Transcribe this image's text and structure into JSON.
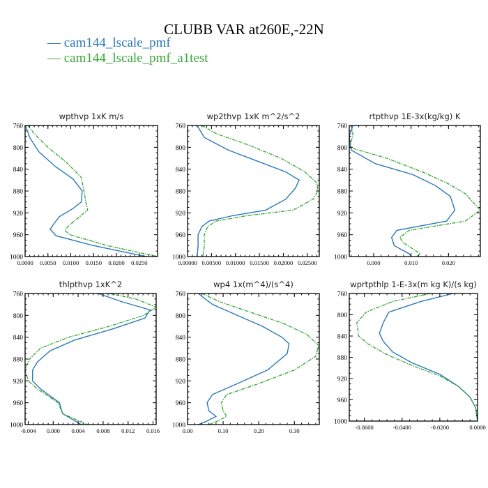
{
  "title": "CLUBB VAR at260E,-22N",
  "legend": [
    {
      "label": "— cam144_lscale_pmf",
      "color": "#2a78b6"
    },
    {
      "label": "— cam144_lscale_pmf_a1test",
      "color": "#3aa83a"
    }
  ],
  "colors": {
    "series1": "#2a78b6",
    "series2": "#3aa83a"
  },
  "chart_data": [
    {
      "type": "line",
      "title": "wpthvp  1xK m/s",
      "xlim": [
        0,
        0.029
      ],
      "ylim": [
        760,
        1000
      ],
      "y_inverted": true,
      "xticks": [
        0,
        0.005,
        0.01,
        0.015,
        0.02,
        0.025
      ],
      "xtick_labels": [
        "0.0000",
        "0.0050",
        "0.0100",
        "0.0150",
        "0.0200",
        "0.0250"
      ],
      "yticks": [
        760,
        800,
        840,
        880,
        920,
        960,
        1000
      ],
      "ytick_labels": [
        "760",
        "800",
        "840",
        "880",
        "920",
        "960",
        "1000"
      ],
      "series": [
        {
          "name": "cam144_lscale_pmf",
          "x": [
            0.0001,
            0.001,
            0.003,
            0.0066,
            0.0105,
            0.0125,
            0.0123,
            0.0105,
            0.0075,
            0.0063,
            0.0055,
            0.0068,
            0.015,
            0.0265
          ],
          "y": [
            760,
            782,
            808,
            835,
            858,
            880,
            900,
            912,
            927,
            940,
            950,
            962,
            980,
            1000
          ]
        },
        {
          "name": "cam144_lscale_pmf_a1test",
          "x": [
            0.0006,
            0.002,
            0.005,
            0.0091,
            0.0123,
            0.0129,
            0.0133,
            0.0137,
            0.0115,
            0.0095,
            0.0087,
            0.0098,
            0.018,
            0.029
          ],
          "y": [
            760,
            775,
            800,
            828,
            855,
            880,
            900,
            915,
            930,
            944,
            952,
            960,
            980,
            1000
          ]
        }
      ]
    },
    {
      "type": "line",
      "title": "wp2thvp  1xK m^2/s^2",
      "xlim": [
        0,
        0.0275
      ],
      "ylim": [
        760,
        1000
      ],
      "y_inverted": true,
      "xticks": [
        0,
        0.005,
        0.01,
        0.015,
        0.02,
        0.025
      ],
      "xtick_labels": [
        "0.00000",
        "0.00500",
        "0.01000",
        "0.01500",
        "0.02000",
        "0.02500"
      ],
      "yticks": [
        760,
        800,
        840,
        880,
        920,
        960,
        1000
      ],
      "ytick_labels": [
        "760",
        "800",
        "840",
        "880",
        "920",
        "960",
        "1000"
      ],
      "series": [
        {
          "name": "cam144_lscale_pmf",
          "x": [
            0.002,
            0.0035,
            0.0085,
            0.0145,
            0.0205,
            0.0233,
            0.0225,
            0.0205,
            0.0163,
            0.0095,
            0.0045,
            0.003,
            0.0022,
            0.0022,
            0.002
          ],
          "y": [
            760,
            782,
            805,
            825,
            845,
            860,
            875,
            895,
            915,
            925,
            935,
            945,
            960,
            980,
            1000
          ]
        },
        {
          "name": "cam144_lscale_pmf_a1test",
          "x": [
            0.003,
            0.006,
            0.0125,
            0.0195,
            0.0245,
            0.027,
            0.0272,
            0.0262,
            0.022,
            0.0125,
            0.006,
            0.0042,
            0.0035,
            0.0035,
            0.0032
          ],
          "y": [
            760,
            775,
            795,
            820,
            845,
            865,
            880,
            895,
            915,
            925,
            935,
            945,
            960,
            980,
            1000
          ]
        }
      ]
    },
    {
      "type": "line",
      "title": "rtpthvp  1E-3x(kg/kg) K",
      "xlim": [
        -0.0065,
        0.0285
      ],
      "ylim": [
        760,
        1000
      ],
      "y_inverted": true,
      "xticks": [
        0,
        0.01,
        0.02
      ],
      "xtick_labels": [
        "0.000",
        "0.010",
        "0.020"
      ],
      "yticks": [
        760,
        800,
        840,
        880,
        920,
        960,
        1000
      ],
      "ytick_labels": [
        "760",
        "800",
        "840",
        "880",
        "920",
        "960",
        "1000"
      ],
      "series": [
        {
          "name": "cam144_lscale_pmf",
          "x": [
            -0.0055,
            -0.0065,
            -0.006,
            0.0005,
            0.0105,
            0.0165,
            0.0205,
            0.0217,
            0.0195,
            0.0062,
            0.0048,
            0.0055,
            0.0095,
            0.01
          ],
          "y": [
            760,
            780,
            805,
            830,
            850,
            870,
            890,
            915,
            935,
            952,
            965,
            980,
            995,
            1000
          ]
        },
        {
          "name": "cam144_lscale_pmf_a1test",
          "x": [
            -0.006,
            -0.0055,
            -0.0065,
            0.0035,
            0.013,
            0.0195,
            0.0245,
            0.0285,
            0.0245,
            0.0095,
            0.007,
            0.008,
            0.0125,
            0.0115
          ],
          "y": [
            760,
            778,
            800,
            820,
            845,
            865,
            885,
            915,
            935,
            952,
            965,
            975,
            995,
            1000
          ]
        }
      ]
    },
    {
      "type": "line",
      "title": "thlpthvp  1xK^2",
      "xlim": [
        -0.0045,
        0.0165
      ],
      "ylim": [
        760,
        1000
      ],
      "y_inverted": true,
      "xticks": [
        -0.004,
        0,
        0.004,
        0.008,
        0.012,
        0.016
      ],
      "xtick_labels": [
        "-0.004",
        "0.000",
        "0.004",
        "0.008",
        "0.012",
        "0.016"
      ],
      "yticks": [
        760,
        800,
        840,
        880,
        920,
        960,
        1000
      ],
      "ytick_labels": [
        "760",
        "800",
        "840",
        "880",
        "920",
        "960",
        "1000"
      ],
      "series": [
        {
          "name": "cam144_lscale_pmf",
          "x": [
            0.0072,
            0.011,
            0.0155,
            0.0147,
            0.0095,
            0.0035,
            -0.0005,
            -0.0025,
            -0.0033,
            -0.0033,
            -0.002,
            0.001,
            0.0015,
            0.0045
          ],
          "y": [
            760,
            775,
            790,
            805,
            825,
            845,
            865,
            885,
            900,
            920,
            935,
            960,
            980,
            1000
          ]
        },
        {
          "name": "cam144_lscale_pmf_a1test",
          "x": [
            0.009,
            0.0132,
            0.0165,
            0.0145,
            0.009,
            0.0025,
            -0.002,
            -0.0038,
            -0.0045,
            -0.004,
            -0.0025,
            0.0008,
            0.0015,
            0.0055
          ],
          "y": [
            760,
            770,
            785,
            800,
            820,
            840,
            860,
            880,
            900,
            920,
            935,
            960,
            980,
            1000
          ]
        }
      ]
    },
    {
      "type": "line",
      "title": "wp4  1x(m^4)/(s^4)",
      "xlim": [
        0,
        0.37
      ],
      "ylim": [
        760,
        1000
      ],
      "y_inverted": true,
      "xticks": [
        0,
        0.1,
        0.2,
        0.3
      ],
      "xtick_labels": [
        "0.00",
        "0.10",
        "0.20",
        "0.30"
      ],
      "yticks": [
        760,
        800,
        840,
        880,
        920,
        960,
        1000
      ],
      "ytick_labels": [
        "760",
        "800",
        "840",
        "880",
        "920",
        "960",
        "1000"
      ],
      "series": [
        {
          "name": "cam144_lscale_pmf",
          "x": [
            0.03,
            0.07,
            0.14,
            0.21,
            0.265,
            0.285,
            0.28,
            0.225,
            0.14,
            0.07,
            0.055,
            0.06,
            0.08,
            0.05,
            0.03
          ],
          "y": [
            760,
            780,
            800,
            820,
            840,
            852,
            870,
            900,
            925,
            945,
            960,
            975,
            985,
            995,
            1000
          ]
        },
        {
          "name": "cam144_lscale_pmf_a1test",
          "x": [
            0.04,
            0.09,
            0.18,
            0.27,
            0.335,
            0.368,
            0.36,
            0.3,
            0.2,
            0.11,
            0.095,
            0.1,
            0.11,
            0.08,
            0.06
          ],
          "y": [
            760,
            775,
            795,
            815,
            835,
            855,
            875,
            900,
            925,
            945,
            960,
            975,
            985,
            995,
            1000
          ]
        }
      ]
    },
    {
      "type": "line",
      "title": "wprtpthlp  1-E-3x(m kg K)/(s kg)",
      "xlim": [
        -0.068,
        0
      ],
      "ylim": [
        760,
        1000
      ],
      "y_inverted": true,
      "xticks": [
        -0.06,
        -0.04,
        -0.02,
        0
      ],
      "xtick_labels": [
        "-0.0600",
        "-0.0400",
        "-0.0200",
        "0.0000"
      ],
      "yticks": [
        760,
        800,
        840,
        880,
        920,
        960,
        1000
      ],
      "ytick_labels": [
        "760",
        "800",
        "840",
        "880",
        "920",
        "960",
        "1000"
      ],
      "series": [
        {
          "name": "cam144_lscale_pmf",
          "x": [
            -0.013,
            -0.03,
            -0.047,
            -0.05,
            -0.052,
            -0.05,
            -0.045,
            -0.035,
            -0.02,
            -0.01,
            -0.004,
            -0.001,
            0
          ],
          "y": [
            760,
            775,
            795,
            815,
            835,
            850,
            870,
            890,
            912,
            935,
            955,
            975,
            1000
          ]
        },
        {
          "name": "cam144_lscale_pmf_a1test",
          "x": [
            -0.025,
            -0.045,
            -0.059,
            -0.064,
            -0.063,
            -0.058,
            -0.048,
            -0.035,
            -0.02,
            -0.01,
            -0.004,
            -0.001,
            0
          ],
          "y": [
            760,
            775,
            795,
            815,
            840,
            855,
            875,
            895,
            915,
            935,
            955,
            975,
            1000
          ]
        }
      ]
    }
  ]
}
